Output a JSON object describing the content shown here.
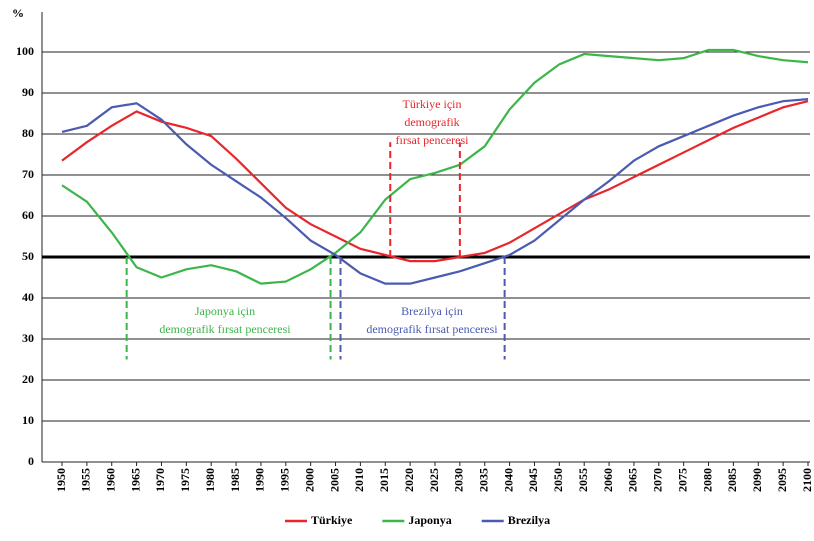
{
  "chart_data": {
    "type": "line",
    "y_label": "%",
    "x": [
      1950,
      1955,
      1960,
      1965,
      1970,
      1975,
      1980,
      1985,
      1990,
      1995,
      2000,
      2005,
      2010,
      2015,
      2020,
      2025,
      2030,
      2035,
      2040,
      2045,
      2050,
      2055,
      2060,
      2065,
      2070,
      2075,
      2080,
      2085,
      2090,
      2095,
      2100
    ],
    "series": [
      {
        "name": "Türkiye",
        "color": "#e8262b",
        "values": [
          73.5,
          78,
          82,
          85.5,
          83,
          81.5,
          79.5,
          74,
          68,
          62,
          58,
          55,
          52,
          50.5,
          49,
          49,
          50,
          51,
          53.5,
          57,
          60.5,
          64,
          66.5,
          69.5,
          72.5,
          75.5,
          78.5,
          81.5,
          84,
          86.5,
          88
        ]
      },
      {
        "name": "Japonya",
        "color": "#3cb54a",
        "values": [
          67.5,
          63.5,
          56,
          47.5,
          45,
          47,
          48,
          46.5,
          43.5,
          44,
          47,
          51,
          56,
          64,
          69,
          70.5,
          72.5,
          77,
          86,
          92.5,
          97,
          99.5,
          99,
          98.5,
          98,
          98.5,
          100.5,
          100.5,
          99,
          98,
          97.5
        ]
      },
      {
        "name": "Brezilya",
        "color": "#4a5bb0",
        "values": [
          80.5,
          82,
          86.5,
          87.5,
          83.5,
          77.5,
          72.5,
          68.5,
          64.5,
          59.5,
          54,
          50.5,
          46,
          43.5,
          43.5,
          45,
          46.5,
          48.5,
          50.5,
          54,
          59,
          64,
          68.5,
          73.5,
          77,
          79.5,
          82,
          84.5,
          86.5,
          88,
          88.5
        ]
      }
    ],
    "xlim": [
      1950,
      2100
    ],
    "ylim": [
      0,
      100
    ],
    "yticks": [
      0,
      10,
      20,
      30,
      40,
      50,
      60,
      70,
      80,
      90,
      100
    ],
    "grid": true,
    "reference_line": 50,
    "annotations": [
      {
        "lines": [
          "Türkiye için",
          "demografik",
          "fırsat penceresi"
        ],
        "color": "#e8262b",
        "x": [
          2016,
          2030
        ]
      },
      {
        "lines": [
          "Japonya için",
          "demografik fırsat penceresi"
        ],
        "color": "#3cb54a",
        "x": [
          1963,
          2004
        ]
      },
      {
        "lines": [
          "Brezilya için",
          "demografik fırsat penceresi"
        ],
        "color": "#4a5bb0",
        "x": [
          2006,
          2039
        ]
      }
    ],
    "legend": "bottom"
  }
}
